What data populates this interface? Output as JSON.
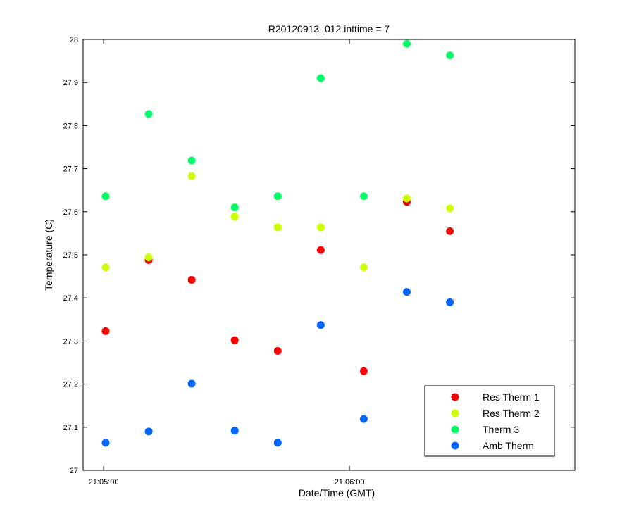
{
  "chart_data": {
    "type": "scatter",
    "title": "R20120913_012 inttime = 7",
    "xlabel": "Date/Time (GMT)",
    "ylabel": "Temperature (C)",
    "x_unit": "seconds",
    "xlim": [
      "21:04:55",
      "21:06:55"
    ],
    "ylim": [
      27,
      28
    ],
    "xticks": [
      {
        "time": "21:05:00",
        "label": "21:05:00"
      },
      {
        "time": "21:06:00",
        "label": "21:06:00"
      }
    ],
    "yticks": [
      "27",
      "27.1",
      "27.2",
      "27.3",
      "27.4",
      "27.5",
      "27.6",
      "27.7",
      "27.8",
      "27.9",
      "28"
    ],
    "x": [
      "21:05:00.5",
      "21:05:11",
      "21:05:21.5",
      "21:05:32",
      "21:05:42.5",
      "21:05:53",
      "21:06:03.5",
      "21:06:14",
      "21:06:24.5"
    ],
    "series": [
      {
        "name": "Res Therm 1",
        "color": "#ff0000",
        "values": [
          27.323,
          27.488,
          27.442,
          27.302,
          27.277,
          27.511,
          27.23,
          27.623,
          27.555
        ]
      },
      {
        "name": "Res Therm 2",
        "color": "#ccff00",
        "values": [
          27.471,
          27.494,
          27.683,
          27.589,
          27.564,
          27.564,
          27.471,
          27.631,
          27.608
        ]
      },
      {
        "name": "Therm 3",
        "color": "#00ff66",
        "values": [
          27.636,
          27.827,
          27.719,
          27.61,
          27.636,
          27.91,
          27.636,
          27.99,
          27.963
        ]
      },
      {
        "name": "Amb Therm",
        "color": "#0066ff",
        "values": [
          27.064,
          27.09,
          27.201,
          27.092,
          27.064,
          27.337,
          27.119,
          27.414,
          27.39
        ]
      }
    ],
    "grid": false,
    "legend_position": "bottom-right"
  }
}
